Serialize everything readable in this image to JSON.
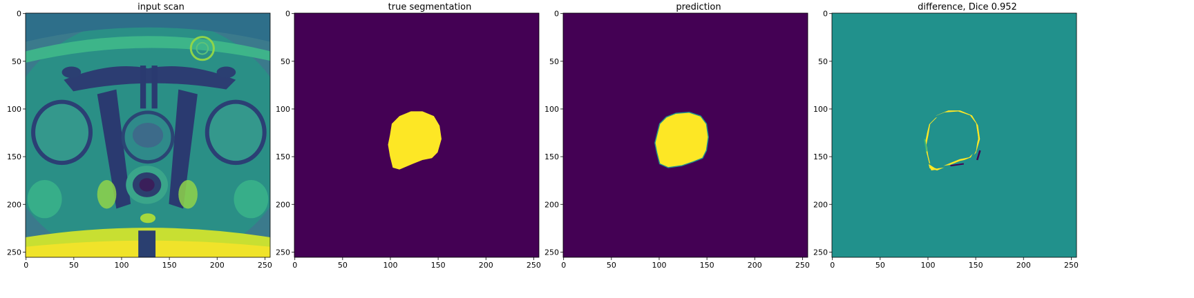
{
  "panels": [
    {
      "title": "input scan",
      "kind": "mri",
      "x_ticks": [
        "0",
        "50",
        "100",
        "150",
        "200",
        "250"
      ],
      "y_ticks": [
        "0",
        "50",
        "100",
        "150",
        "200",
        "250"
      ]
    },
    {
      "title": "true segmentation",
      "kind": "mask_true",
      "x_ticks": [
        "0",
        "50",
        "100",
        "150",
        "200",
        "250"
      ],
      "y_ticks": [
        "0",
        "50",
        "100",
        "150",
        "200",
        "250"
      ]
    },
    {
      "title": "prediction",
      "kind": "mask_pred",
      "x_ticks": [
        "0",
        "50",
        "100",
        "150",
        "200",
        "250"
      ],
      "y_ticks": [
        "0",
        "50",
        "100",
        "150",
        "200",
        "250"
      ]
    },
    {
      "title": "difference, Dice 0.952",
      "kind": "difference",
      "x_ticks": [
        "0",
        "50",
        "100",
        "150",
        "200",
        "250"
      ],
      "y_ticks": [
        "0",
        "50",
        "100",
        "150",
        "200",
        "250"
      ]
    }
  ],
  "colors": {
    "viridis_dark": "#440154",
    "viridis_mid": "#21918c",
    "viridis_bright": "#fde725",
    "viridis_green": "#35b779",
    "background": "#ffffff"
  }
}
